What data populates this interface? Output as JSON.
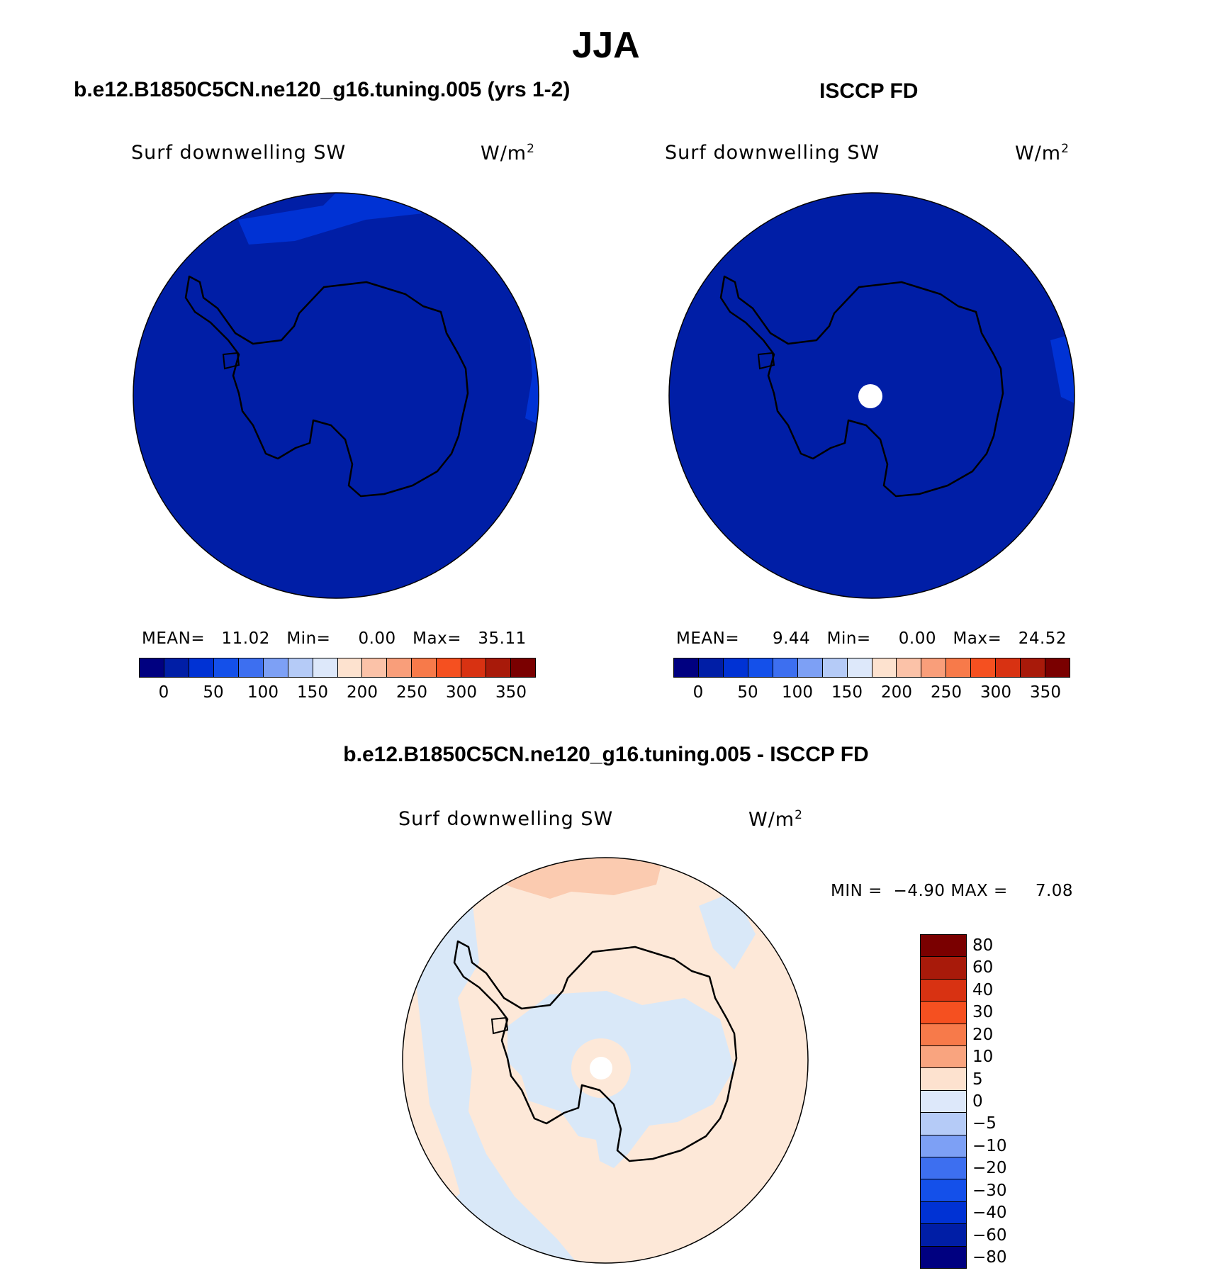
{
  "figure": {
    "season": "JJA"
  },
  "panels": {
    "model": {
      "title": "b.e12.B1850C5CN.ne120_g16.tuning.005 (yrs 1-2)",
      "variable": "Surf downwelling SW",
      "units": "W/m",
      "units_exp": "2",
      "mean_label": "MEAN=",
      "mean_value": "11.02",
      "min_label": "Min=",
      "min_value": "0.00",
      "max_label": "Max=",
      "max_value": "35.11"
    },
    "obs": {
      "title": "ISCCP FD",
      "variable": "Surf downwelling SW",
      "units": "W/m",
      "units_exp": "2",
      "mean_label": "MEAN=",
      "mean_value": "9.44",
      "min_label": "Min=",
      "min_value": "0.00",
      "max_label": "Max=",
      "max_value": "24.52"
    },
    "diff": {
      "title": "b.e12.B1850C5CN.ne120_g16.tuning.005 - ISCCP FD",
      "variable": "Surf downwelling SW",
      "units": "W/m",
      "units_exp": "2",
      "min_label": "MIN =",
      "min_value": "−4.90",
      "max_label": "MAX =",
      "max_value": "7.08"
    }
  },
  "colorbar_main": {
    "colors": [
      "#000080",
      "#001ea6",
      "#0032d4",
      "#1450ea",
      "#3d6ff0",
      "#7da0f5",
      "#b5cbf7",
      "#dde8fa",
      "#fde2cf",
      "#fbc2a8",
      "#f99e7a",
      "#f77a4a",
      "#f55020",
      "#d83212",
      "#a81a0a",
      "#7a0000"
    ],
    "ticks": [
      "0",
      "50",
      "100",
      "150",
      "200",
      "250",
      "300",
      "350"
    ]
  },
  "colorbar_diff": {
    "colors": [
      "#7a0000",
      "#a81a0a",
      "#d83212",
      "#f55020",
      "#f77a4a",
      "#f9a47f",
      "#fde2cf",
      "#dde8fa",
      "#b5cbf7",
      "#7da0f5",
      "#3d6ff0",
      "#1450ea",
      "#0032d4",
      "#001ea6",
      "#000080"
    ],
    "ticks": [
      "80",
      "60",
      "40",
      "30",
      "20",
      "10",
      "5",
      "0",
      "−5",
      "−10",
      "−20",
      "−30",
      "−40",
      "−60",
      "−80"
    ]
  },
  "map_colors": {
    "ocean_main": "#001ea6",
    "model_patch": "#0032d4",
    "obs_patch": "#0032d4",
    "missing": "#ffffff",
    "diff_pos": "#fde8d8",
    "diff_pos2": "#fbcbb0",
    "diff_neg": "#d9e8f8"
  },
  "icons": {
    "coastline": "antarctica-coastline-icon"
  }
}
